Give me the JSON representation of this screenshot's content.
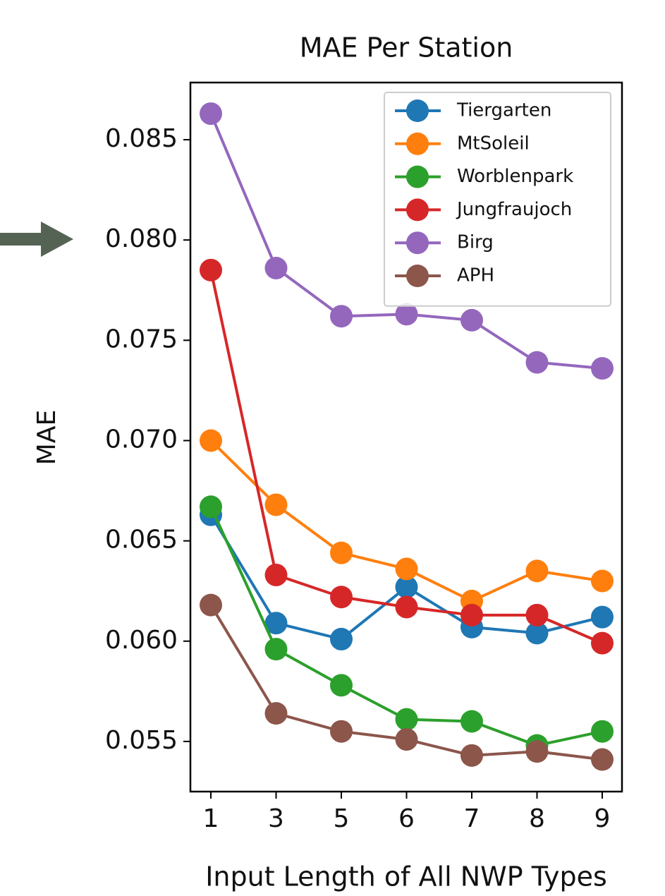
{
  "chart_data": {
    "type": "line",
    "title": "MAE Per Station",
    "xlabel": "Input Length of All NWP Types",
    "ylabel": "MAE",
    "categories": [
      "1",
      "3",
      "5",
      "6",
      "7",
      "8",
      "9"
    ],
    "series": [
      {
        "name": "Tiergarten",
        "color": "#1f77b4",
        "values": [
          0.0663,
          0.0609,
          0.0601,
          0.0627,
          0.0607,
          0.0604,
          0.0612
        ]
      },
      {
        "name": "MtSoleil",
        "color": "#ff7f0e",
        "values": [
          0.07,
          0.0668,
          0.0644,
          0.0636,
          0.062,
          0.0635,
          0.063
        ]
      },
      {
        "name": "Worblenpark",
        "color": "#2ca02c",
        "values": [
          0.0667,
          0.0596,
          0.0578,
          0.0561,
          0.056,
          0.0548,
          0.0555
        ]
      },
      {
        "name": "Jungfraujoch",
        "color": "#d62728",
        "values": [
          0.0785,
          0.0633,
          0.0622,
          0.0617,
          0.0613,
          0.0613,
          0.0599
        ]
      },
      {
        "name": "Birg",
        "color": "#9467bd",
        "values": [
          0.0863,
          0.0786,
          0.0762,
          0.0763,
          0.076,
          0.0739,
          0.0736
        ]
      },
      {
        "name": "APH",
        "color": "#8c564b",
        "values": [
          0.0618,
          0.0564,
          0.0555,
          0.0551,
          0.0543,
          0.0545,
          0.0541
        ]
      }
    ],
    "ylim": [
      0.0525,
      0.08785
    ],
    "yticks": [
      {
        "value": 0.055,
        "label": "0.055"
      },
      {
        "value": 0.06,
        "label": "0.060"
      },
      0.065,
      {
        "value": 0.07,
        "label": "0.070"
      },
      0.075,
      {
        "value": 0.08,
        "label": "0.080"
      },
      0.085
    ],
    "grid": false,
    "legend": "upper right"
  }
}
